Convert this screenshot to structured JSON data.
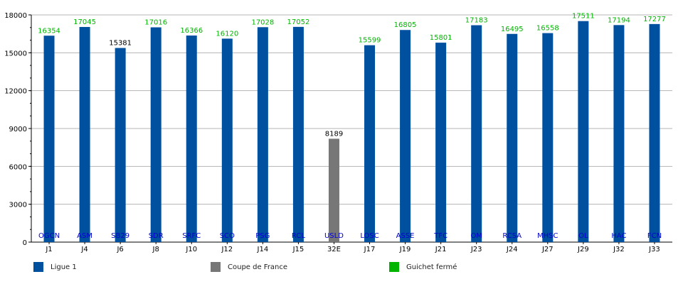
{
  "chart_data": {
    "type": "bar",
    "categories": [
      "J1",
      "J4",
      "J6",
      "J8",
      "J10",
      "J12",
      "J14",
      "J15",
      "32E",
      "J17",
      "J19",
      "J21",
      "J23",
      "J24",
      "J27",
      "J29",
      "J32",
      "J33"
    ],
    "values": [
      16354,
      17045,
      15381,
      17016,
      16366,
      16120,
      17028,
      17052,
      8189,
      15599,
      16805,
      15801,
      17183,
      16495,
      16558,
      17511,
      17194,
      17277
    ],
    "opponents": [
      "OGCN",
      "ASM",
      "SB29",
      "SDR",
      "SRFC",
      "SCO",
      "PSG",
      "RCL",
      "USLD",
      "LOSC",
      "ASSE",
      "TFC",
      "OM",
      "RCSA",
      "MHSC",
      "OL",
      "HAC",
      "FCN"
    ],
    "competition": [
      "Ligue 1",
      "Ligue 1",
      "Ligue 1",
      "Ligue 1",
      "Ligue 1",
      "Ligue 1",
      "Ligue 1",
      "Ligue 1",
      "Coupe de France",
      "Ligue 1",
      "Ligue 1",
      "Ligue 1",
      "Ligue 1",
      "Ligue 1",
      "Ligue 1",
      "Ligue 1",
      "Ligue 1",
      "Ligue 1"
    ],
    "sold_out": [
      true,
      true,
      false,
      true,
      true,
      true,
      true,
      true,
      false,
      true,
      true,
      true,
      true,
      true,
      true,
      true,
      true,
      true
    ],
    "ylim": [
      0,
      18000
    ],
    "yticks": [
      0,
      3000,
      6000,
      9000,
      12000,
      15000,
      18000
    ],
    "grid": true,
    "legend_position": "bottom",
    "legend": [
      {
        "label": "Ligue 1",
        "color": "#0050a0"
      },
      {
        "label": "Coupe de France",
        "color": "#777777"
      },
      {
        "label": "Guichet fermé",
        "color": "#00b400"
      }
    ],
    "colors": {
      "ligue1": "#0050a0",
      "coupe": "#777777",
      "sold_out_label": "#00b400",
      "normal_label": "#000000",
      "opponent_label": "#0000cc"
    }
  }
}
